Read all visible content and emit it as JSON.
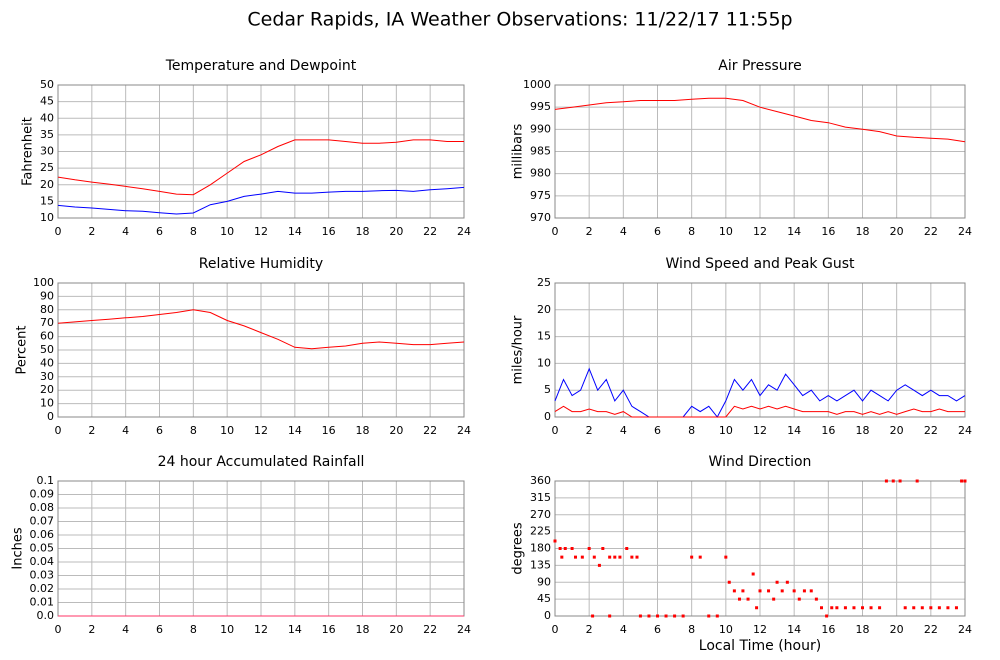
{
  "title": "Cedar Rapids, IA Weather Observations: 11/22/17 11:55p",
  "chart_data": [
    {
      "type": "line",
      "title": "Temperature and Dewpoint",
      "ylabel": "Fahrenheit",
      "x": [
        0,
        1,
        2,
        3,
        4,
        5,
        6,
        7,
        8,
        9,
        10,
        11,
        12,
        13,
        14,
        15,
        16,
        17,
        18,
        19,
        20,
        21,
        22,
        23,
        24
      ],
      "series": [
        {
          "color": "#ff0000",
          "values": [
            22.3,
            21.5,
            20.8,
            20.2,
            19.5,
            18.8,
            18.0,
            17.2,
            17.0,
            20.0,
            23.5,
            27,
            29,
            31.5,
            33.5,
            33.5,
            33.5,
            33,
            32.5,
            32.5,
            32.8,
            33.5,
            33.5,
            33,
            33
          ]
        },
        {
          "color": "#0000ff",
          "values": [
            13.8,
            13.3,
            13,
            12.6,
            12.2,
            12,
            11.6,
            11.2,
            11.5,
            14,
            15,
            16.5,
            17.2,
            18,
            17.5,
            17.5,
            17.8,
            18,
            18,
            18.2,
            18.3,
            18,
            18.5,
            18.8,
            19.2
          ]
        }
      ],
      "xlim": [
        0,
        24
      ],
      "xticks": [
        0,
        2,
        4,
        6,
        8,
        10,
        12,
        14,
        16,
        18,
        20,
        22,
        24
      ],
      "ylim": [
        10,
        50
      ],
      "yticks": [
        10,
        15,
        20,
        25,
        30,
        35,
        40,
        45,
        50
      ],
      "grid": true
    },
    {
      "type": "line",
      "title": "Air Pressure",
      "ylabel": "millibars",
      "x": [
        0,
        1,
        2,
        3,
        4,
        5,
        6,
        7,
        8,
        9,
        10,
        11,
        12,
        13,
        14,
        15,
        16,
        17,
        18,
        19,
        20,
        21,
        22,
        23,
        24
      ],
      "series": [
        {
          "color": "#ff0000",
          "values": [
            994.5,
            995,
            995.5,
            996,
            996.2,
            996.5,
            996.5,
            996.5,
            996.8,
            997,
            997,
            996.5,
            995,
            994,
            993,
            992,
            991.5,
            990.5,
            990,
            989.5,
            988.5,
            988.2,
            988,
            987.8,
            987.2
          ]
        }
      ],
      "xlim": [
        0,
        24
      ],
      "xticks": [
        0,
        2,
        4,
        6,
        8,
        10,
        12,
        14,
        16,
        18,
        20,
        22,
        24
      ],
      "ylim": [
        970,
        1000
      ],
      "yticks": [
        970,
        975,
        980,
        985,
        990,
        995,
        1000
      ],
      "grid": true
    },
    {
      "type": "line",
      "title": "Relative Humidity",
      "ylabel": "Percent",
      "x": [
        0,
        1,
        2,
        3,
        4,
        5,
        6,
        7,
        8,
        9,
        10,
        11,
        12,
        13,
        14,
        15,
        16,
        17,
        18,
        19,
        20,
        21,
        22,
        23,
        24
      ],
      "series": [
        {
          "color": "#ff0000",
          "values": [
            70,
            71,
            72,
            73,
            74,
            75,
            76.5,
            78,
            80,
            78,
            72,
            68,
            63,
            58,
            52,
            51,
            52,
            53,
            55,
            56,
            55,
            54,
            54,
            55,
            56
          ]
        }
      ],
      "xlim": [
        0,
        24
      ],
      "xticks": [
        0,
        2,
        4,
        6,
        8,
        10,
        12,
        14,
        16,
        18,
        20,
        22,
        24
      ],
      "ylim": [
        0,
        100
      ],
      "yticks": [
        0,
        10,
        20,
        30,
        40,
        50,
        60,
        70,
        80,
        90,
        100
      ],
      "grid": true
    },
    {
      "type": "line",
      "title": "Wind Speed and Peak Gust",
      "ylabel": "miles/hour",
      "x": [
        0,
        0.5,
        1,
        1.5,
        2,
        2.5,
        3,
        3.5,
        4,
        4.5,
        5,
        5.5,
        6,
        6.5,
        7,
        7.5,
        8,
        8.5,
        9,
        9.5,
        10,
        10.5,
        11,
        11.5,
        12,
        12.5,
        13,
        13.5,
        14,
        14.5,
        15,
        15.5,
        16,
        16.5,
        17,
        17.5,
        18,
        18.5,
        19,
        19.5,
        20,
        20.5,
        21,
        21.5,
        22,
        22.5,
        23,
        23.5,
        24
      ],
      "series": [
        {
          "color": "#0000ff",
          "values": [
            3,
            7,
            4,
            5,
            9,
            5,
            7,
            3,
            5,
            2,
            1,
            0,
            0,
            0,
            0,
            0,
            2,
            1,
            2,
            0,
            3,
            7,
            5,
            7,
            4,
            6,
            5,
            8,
            6,
            4,
            5,
            3,
            4,
            3,
            4,
            5,
            3,
            5,
            4,
            3,
            5,
            6,
            5,
            4,
            5,
            4,
            4,
            3,
            4
          ]
        },
        {
          "color": "#ff0000",
          "values": [
            1,
            2,
            1,
            1,
            1.5,
            1,
            1,
            0.5,
            1,
            0,
            0,
            0,
            0,
            0,
            0,
            0,
            0,
            0,
            0,
            0,
            0,
            2,
            1.5,
            2,
            1.5,
            2,
            1.5,
            2,
            1.5,
            1,
            1,
            1,
            1,
            0.5,
            1,
            1,
            0.5,
            1,
            0.5,
            1,
            0.5,
            1,
            1.5,
            1,
            1,
            1.5,
            1,
            1,
            1
          ]
        }
      ],
      "xlim": [
        0,
        24
      ],
      "xticks": [
        0,
        2,
        4,
        6,
        8,
        10,
        12,
        14,
        16,
        18,
        20,
        22,
        24
      ],
      "ylim": [
        0,
        25
      ],
      "yticks": [
        0,
        5,
        10,
        15,
        20,
        25
      ],
      "grid": true
    },
    {
      "type": "line",
      "title": "24 hour Accumulated Rainfall",
      "ylabel": "Inches",
      "x": [
        0,
        24
      ],
      "series": [
        {
          "color": "#ff3366",
          "values": [
            0,
            0
          ]
        }
      ],
      "xlim": [
        0,
        24
      ],
      "xticks": [
        0,
        2,
        4,
        6,
        8,
        10,
        12,
        14,
        16,
        18,
        20,
        22,
        24
      ],
      "ylim": [
        0,
        0.1
      ],
      "yticks": [
        {
          "value": 0,
          "label": "0.0"
        },
        0.01,
        0.02,
        0.03,
        0.04,
        0.05,
        0.06,
        0.07,
        0.08,
        0.09,
        0.1
      ],
      "grid": true
    },
    {
      "type": "scatter",
      "title": "Wind Direction",
      "ylabel": "degrees",
      "xlabel": "Local Time (hour)",
      "x": [
        0,
        0.3,
        0.6,
        1,
        0.4,
        1.2,
        1.6,
        2,
        2.3,
        2.6,
        2.8,
        3.2,
        3.5,
        3.8,
        4.2,
        4.5,
        4.8,
        2.2,
        3.2,
        5,
        5.5,
        6,
        6.5,
        7,
        7.5,
        8,
        8.5,
        9,
        9.5,
        10,
        10.2,
        10.5,
        10.8,
        11,
        11.3,
        11.6,
        11.8,
        12,
        12.5,
        12.8,
        13,
        13.3,
        13.6,
        14,
        14.3,
        14.6,
        15,
        15.3,
        15.6,
        15.9,
        16.2,
        16.5,
        17,
        17.5,
        18,
        18.5,
        19,
        19.4,
        19.8,
        20.2,
        20.5,
        21,
        21.2,
        21.5,
        22,
        22.5,
        23,
        23.5,
        23.8,
        24
      ],
      "series": [
        {
          "color": "#ff0000",
          "values": [
            200,
            180,
            180,
            180,
            157,
            157,
            157,
            180,
            157,
            135,
            180,
            157,
            157,
            157,
            180,
            157,
            157,
            0,
            0,
            0,
            0,
            0,
            0,
            0,
            0,
            157,
            157,
            0,
            0,
            157,
            90,
            67,
            45,
            67,
            45,
            112,
            22,
            67,
            67,
            45,
            90,
            67,
            90,
            67,
            45,
            67,
            67,
            45,
            22,
            0,
            22,
            22,
            22,
            22,
            22,
            22,
            22,
            360,
            360,
            360,
            22,
            22,
            360,
            22,
            22,
            22,
            22,
            22,
            360,
            360
          ]
        }
      ],
      "xlim": [
        0,
        24
      ],
      "xticks": [
        0,
        2,
        4,
        6,
        8,
        10,
        12,
        14,
        16,
        18,
        20,
        22,
        24
      ],
      "ylim": [
        0,
        360
      ],
      "yticks": [
        0,
        45,
        90,
        135,
        180,
        225,
        270,
        315,
        360
      ],
      "grid": true
    }
  ]
}
